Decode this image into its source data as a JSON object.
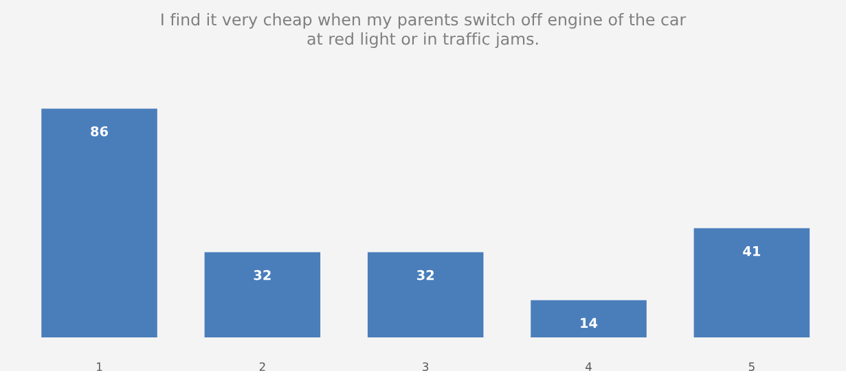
{
  "chart_data": {
    "type": "bar",
    "title": "I find it very cheap when my parents switch off engine of the car\nat red light or in traffic jams.",
    "categories": [
      "1",
      "2",
      "3",
      "4",
      "5"
    ],
    "values": [
      86,
      32,
      32,
      14,
      41
    ],
    "color": "#4a7ebb",
    "data_labels": true,
    "grid": false,
    "legend": false
  }
}
